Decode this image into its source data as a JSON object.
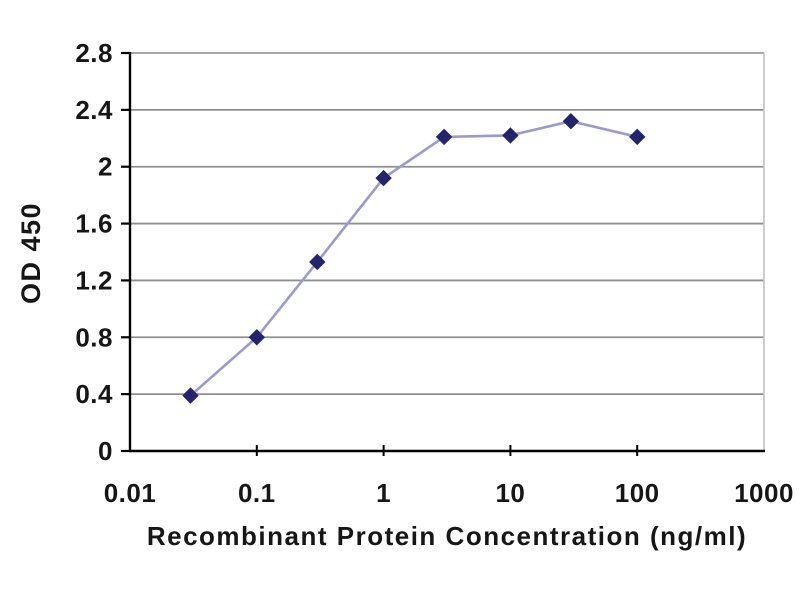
{
  "chart_data": {
    "type": "line",
    "title": "",
    "xlabel": "Recombinant Protein Concentration (ng/ml)",
    "ylabel": "OD 450",
    "x_scale": "log",
    "xlim": [
      0.01,
      1000
    ],
    "ylim": [
      0,
      2.8
    ],
    "x_ticks": [
      0.01,
      0.1,
      1,
      10,
      100,
      1000
    ],
    "x_tick_labels": [
      "0.01",
      "0.1",
      "1",
      "10",
      "100",
      "1000"
    ],
    "y_ticks": [
      0,
      0.4,
      0.8,
      1.2,
      1.6,
      2,
      2.4,
      2.8
    ],
    "y_tick_labels": [
      "0",
      "0.4",
      "0.8",
      "1.2",
      "1.6",
      "2",
      "2.4",
      "2.8"
    ],
    "grid": "horizontal",
    "legend": "none",
    "series": [
      {
        "name": "OD 450",
        "marker": "diamond",
        "x": [
          0.03,
          0.1,
          0.3,
          1,
          3,
          10,
          30,
          100
        ],
        "y": [
          0.39,
          0.8,
          1.33,
          1.92,
          2.21,
          2.22,
          2.32,
          2.21
        ]
      }
    ],
    "colors": {
      "line": "#9a9ace",
      "marker": "#23236e",
      "grid": "#8f8f8f",
      "plot_border_top": "#9a9a9a",
      "plot_border_right": "#c4c4c4",
      "axis": "#000000",
      "text": "#161616",
      "background": "#ffffff"
    }
  }
}
